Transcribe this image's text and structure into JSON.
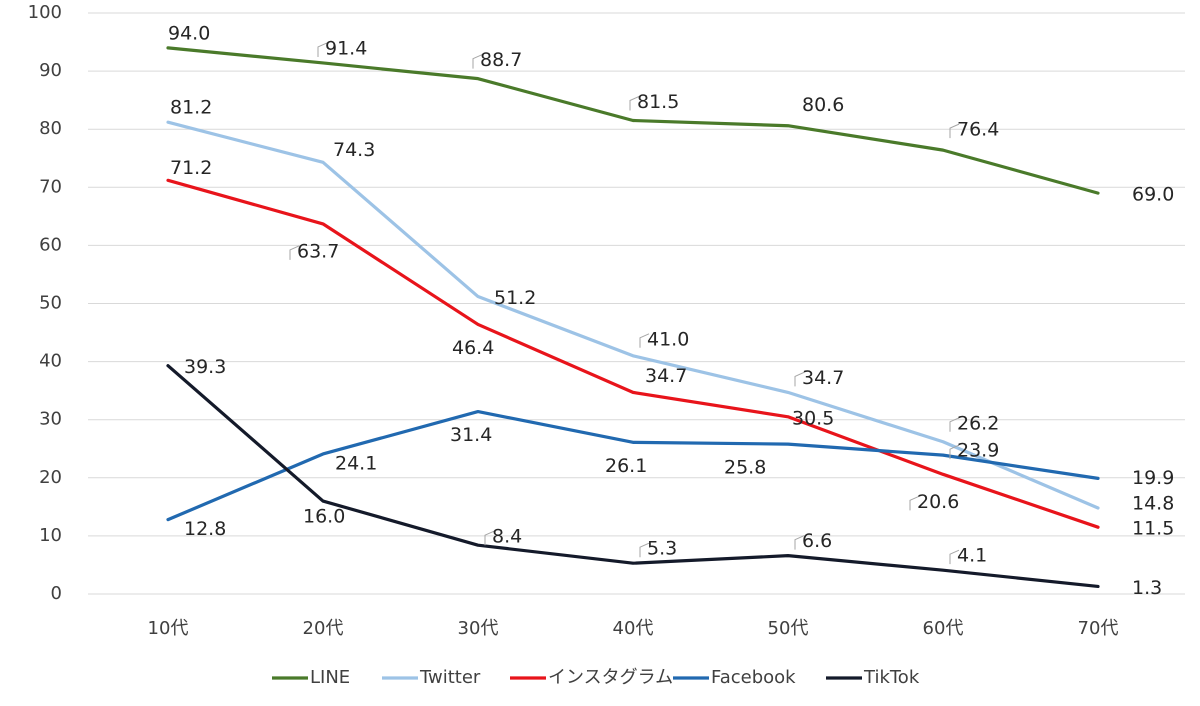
{
  "chart_data": {
    "type": "line",
    "title": "",
    "xlabel": "",
    "ylabel": "",
    "categories": [
      "10代",
      "20代",
      "30代",
      "40代",
      "50代",
      "60代",
      "70代"
    ],
    "ylim": [
      0,
      100
    ],
    "yticks": [
      "0",
      "10",
      "20",
      "30",
      "40",
      "50",
      "60",
      "70",
      "80",
      "90",
      "100"
    ],
    "grid": true,
    "legend_position": "bottom",
    "series": [
      {
        "name": "LINE",
        "color": "#4a7a2a",
        "values": [
          94.0,
          91.4,
          88.7,
          81.5,
          80.6,
          76.4,
          69.0
        ],
        "labels": [
          "94.0",
          "91.4",
          "88.7",
          "81.5",
          "80.6",
          "76.4",
          "69.0"
        ]
      },
      {
        "name": "Twitter",
        "color": "#9dc3e6",
        "values": [
          81.2,
          74.3,
          51.2,
          41.0,
          34.7,
          26.2,
          14.8
        ],
        "labels": [
          "81.2",
          "74.3",
          "51.2",
          "41.0",
          "34.7",
          "26.2",
          "14.8"
        ]
      },
      {
        "name": "インスタグラム",
        "color": "#e8141b",
        "values": [
          71.2,
          63.7,
          46.4,
          34.7,
          30.5,
          20.6,
          11.5
        ],
        "labels": [
          "71.2",
          "63.7",
          "46.4",
          "34.7",
          "30.5",
          "20.6",
          "11.5"
        ]
      },
      {
        "name": "Facebook",
        "color": "#2169b0",
        "values": [
          12.8,
          24.1,
          31.4,
          26.1,
          25.8,
          23.9,
          19.9
        ],
        "labels": [
          "12.8",
          "24.1",
          "31.4",
          "26.1",
          "25.8",
          "23.9",
          "19.9"
        ]
      },
      {
        "name": "TikTok",
        "color": "#141a2a",
        "values": [
          39.3,
          16.0,
          8.4,
          5.3,
          6.6,
          4.1,
          1.3
        ],
        "labels": [
          "39.3",
          "16.0",
          "8.4",
          "5.3",
          "6.6",
          "4.1",
          "1.3"
        ]
      }
    ]
  }
}
